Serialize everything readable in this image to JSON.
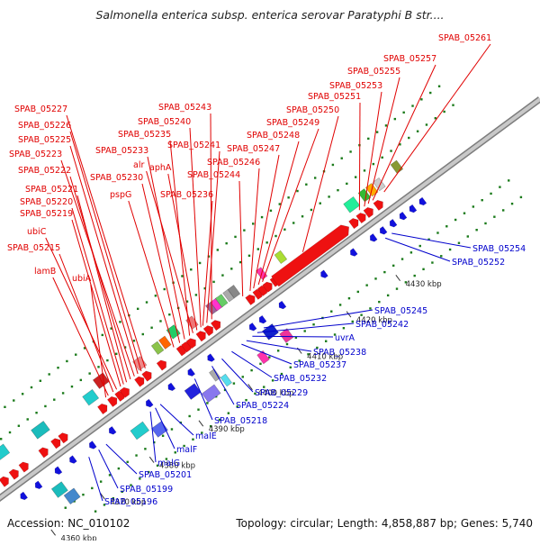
{
  "header": {
    "title": "Salmonella enterica subsp. enterica serovar Paratyphi B str...."
  },
  "footer": {
    "accession": "Accession: NC_010102",
    "summary": "Topology: circular; Length: 4,858,887 bp; Genes: 5,740"
  },
  "colors": {
    "forward_label": "#e00000",
    "reverse_label": "#0000cc",
    "forward_gene": "#ee1111",
    "reverse_gene": "#1111dd",
    "backbone": "#999999",
    "tick_dots": "#1a7a1a"
  },
  "scale_ticks": [
    {
      "label": "4360 kbp",
      "pos": 0.0
    },
    {
      "label": "4370 kbp",
      "pos": 0.1
    },
    {
      "label": "4380 kbp",
      "pos": 0.2
    },
    {
      "label": "4390 kbp",
      "pos": 0.3
    },
    {
      "label": "4400 kbp",
      "pos": 0.4
    },
    {
      "label": "4410 kbp",
      "pos": 0.5
    },
    {
      "label": "4420 kbp",
      "pos": 0.6
    },
    {
      "label": "4430 kbp",
      "pos": 0.7
    }
  ],
  "forward_labels": [
    {
      "name": "SPAB_05261",
      "gene_pos": 0.765
    },
    {
      "name": "SPAB_05257",
      "gene_pos": 0.742
    },
    {
      "name": "SPAB_05255",
      "gene_pos": 0.733
    },
    {
      "name": "SPAB_05253",
      "gene_pos": 0.725
    },
    {
      "name": "SPAB_05251",
      "gene_pos": 0.715
    },
    {
      "name": "SPAB_05250",
      "gene_pos": 0.6
    },
    {
      "name": "SPAB_05249",
      "gene_pos": 0.518
    },
    {
      "name": "SPAB_05248",
      "gene_pos": 0.51
    },
    {
      "name": "SPAB_05247",
      "gene_pos": 0.5
    },
    {
      "name": "SPAB_05246",
      "gene_pos": 0.493
    },
    {
      "name": "SPAB_05244",
      "gene_pos": 0.478
    },
    {
      "name": "SPAB_05243",
      "gene_pos": 0.415
    },
    {
      "name": "SPAB_05241",
      "gene_pos": 0.405
    },
    {
      "name": "SPAB_05240",
      "gene_pos": 0.393
    },
    {
      "name": "SPAB_05236",
      "gene_pos": 0.397
    },
    {
      "name": "aphA",
      "gene_pos": 0.385
    },
    {
      "name": "alr",
      "gene_pos": 0.377
    },
    {
      "name": "SPAB_05235",
      "gene_pos": 0.37
    },
    {
      "name": "SPAB_05233",
      "gene_pos": 0.36
    },
    {
      "name": "SPAB_05230",
      "gene_pos": 0.35
    },
    {
      "name": "pspG",
      "gene_pos": 0.338
    },
    {
      "name": "SPAB_05227",
      "gene_pos": 0.28
    },
    {
      "name": "SPAB_05226",
      "gene_pos": 0.272
    },
    {
      "name": "SPAB_05225",
      "gene_pos": 0.265
    },
    {
      "name": "SPAB_05223",
      "gene_pos": 0.258
    },
    {
      "name": "SPAB_05222",
      "gene_pos": 0.25
    },
    {
      "name": "SPAB_05221",
      "gene_pos": 0.242
    },
    {
      "name": "SPAB_05220",
      "gene_pos": 0.236
    },
    {
      "name": "SPAB_05219",
      "gene_pos": 0.23
    },
    {
      "name": "ubiC",
      "gene_pos": 0.222
    },
    {
      "name": "SPAB_05215",
      "gene_pos": 0.215
    },
    {
      "name": "lamB",
      "gene_pos": 0.205
    },
    {
      "name": "ubiA",
      "gene_pos": 0.2
    }
  ],
  "reverse_labels": [
    {
      "name": "SPAB_05254",
      "gene_pos": 0.735
    },
    {
      "name": "SPAB_05252",
      "gene_pos": 0.722
    },
    {
      "name": "SPAB_05245",
      "gene_pos": 0.475
    },
    {
      "name": "SPAB_05242",
      "gene_pos": 0.462
    },
    {
      "name": "uvrA",
      "gene_pos": 0.452
    },
    {
      "name": "SPAB_05238",
      "gene_pos": 0.44
    },
    {
      "name": "SPAB_05237",
      "gene_pos": 0.43
    },
    {
      "name": "SPAB_05232",
      "gene_pos": 0.41
    },
    {
      "name": "SPAB_05229",
      "gene_pos": 0.39
    },
    {
      "name": "SPAB_05224",
      "gene_pos": 0.37
    },
    {
      "name": "SPAB_05218",
      "gene_pos": 0.335
    },
    {
      "name": "malE",
      "gene_pos": 0.265
    },
    {
      "name": "malF",
      "gene_pos": 0.255
    },
    {
      "name": "malG",
      "gene_pos": 0.245
    },
    {
      "name": "SPAB_05201",
      "gene_pos": 0.155
    },
    {
      "name": "SPAB_05199",
      "gene_pos": 0.14
    },
    {
      "name": "SPAB_05196",
      "gene_pos": 0.12
    }
  ]
}
